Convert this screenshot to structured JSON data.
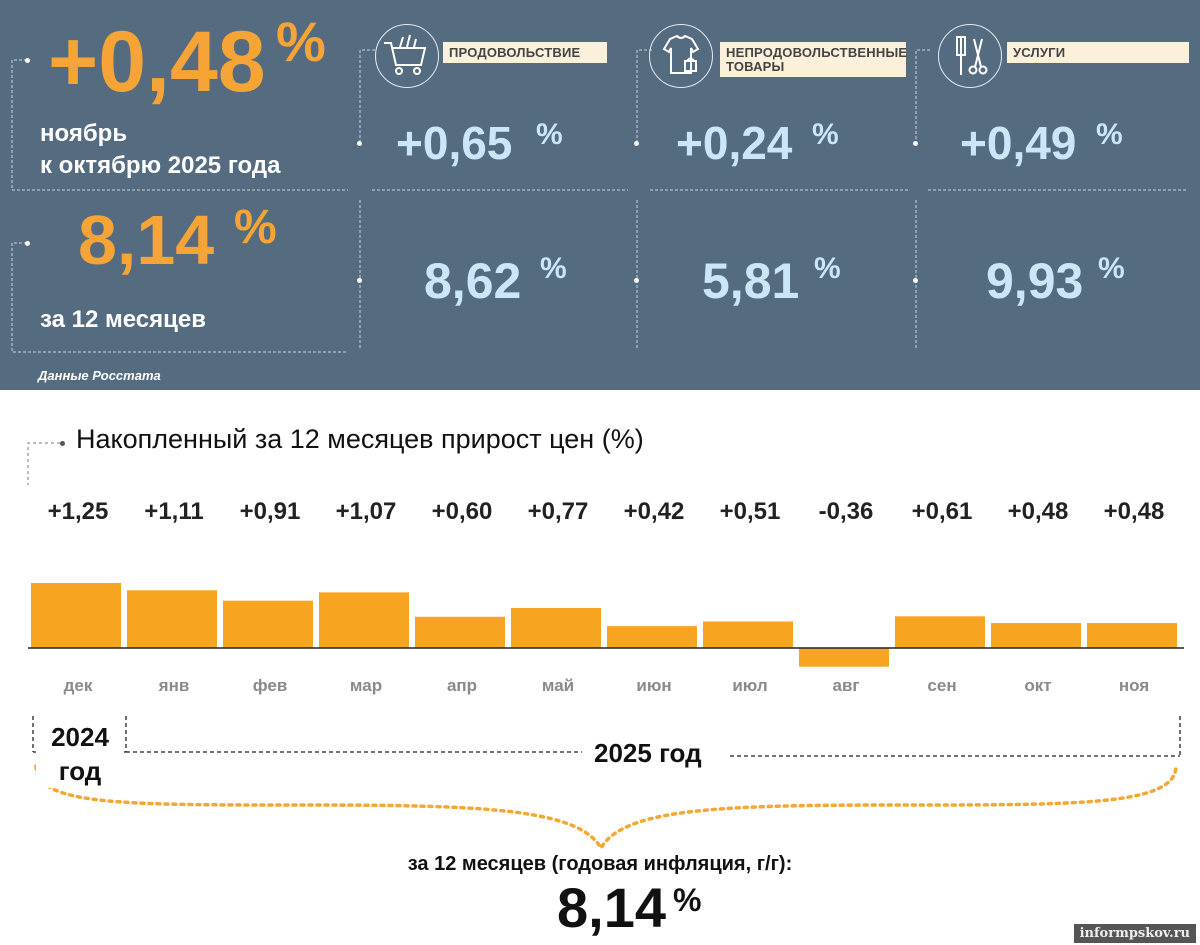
{
  "headline": {
    "value": "+0,48",
    "percent": "%",
    "line1": "ноябрь",
    "line2": "к октябрю 2025 года"
  },
  "annual": {
    "value": "8,14",
    "percent": "%",
    "label": "за 12 месяцев"
  },
  "categories": [
    {
      "label": "ПРОДОВОЛЬСТВИЕ",
      "icon": "shopping-cart-icon",
      "monthly": "+0,65",
      "annual": "8,62",
      "percent": "%"
    },
    {
      "label_line1": "НЕПРОДОВОЛЬСТВЕННЫЕ",
      "label_line2": "ТОВАРЫ",
      "icon": "clothes-icon",
      "monthly": "+0,24",
      "annual": "5,81",
      "percent": "%"
    },
    {
      "label": "УСЛУГИ",
      "icon": "services-tools-icon",
      "monthly": "+0,49",
      "annual": "9,93",
      "percent": "%"
    }
  ],
  "source": "Данные Росстата",
  "chart_data": {
    "type": "bar",
    "title": "Накопленный за 12 месяцев прирост цен (%)",
    "categories": [
      "дек",
      "янв",
      "фев",
      "мар",
      "апр",
      "май",
      "июн",
      "июл",
      "авг",
      "сен",
      "окт",
      "ноя"
    ],
    "values": [
      1.25,
      1.11,
      0.91,
      1.07,
      0.6,
      0.77,
      0.42,
      0.51,
      -0.36,
      0.61,
      0.48,
      0.48
    ],
    "value_labels": [
      "+1,25",
      "+1,11",
      "+0,91",
      "+1,07",
      "+0,60",
      "+0,77",
      "+0,42",
      "+0,51",
      "-0,36",
      "+0,61",
      "+0,48",
      "+0,48"
    ],
    "bar_color": "#f7a421",
    "year_groups": [
      {
        "line1": "2024",
        "line2": "год"
      },
      {
        "label": "2025 год"
      }
    ],
    "summary_label": "за 12 месяцев (годовая инфляция, г/г):",
    "summary_value": "8,14",
    "summary_percent": "%"
  },
  "watermark": "informpskov.ru",
  "colors": {
    "panel": "#556b80",
    "orange": "#f7a436",
    "light_blue": "#cbe6f7",
    "label_bg": "#fbf0d9"
  }
}
